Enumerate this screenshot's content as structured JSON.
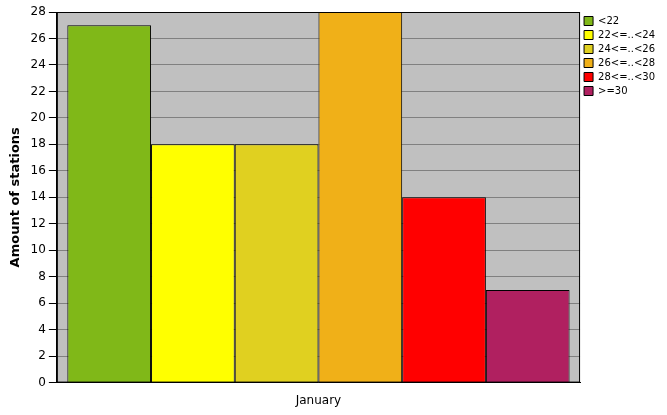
{
  "chart_data": {
    "type": "bar",
    "categories": [
      "January"
    ],
    "series": [
      {
        "name": "<22",
        "color": "#80b818",
        "values": [
          27
        ]
      },
      {
        "name": "22<=..<24",
        "color": "#ffff00",
        "values": [
          18
        ]
      },
      {
        "name": "24<=..<26",
        "color": "#e0d020",
        "values": [
          18
        ]
      },
      {
        "name": "26<=..<28",
        "color": "#f0b018",
        "values": [
          28
        ]
      },
      {
        "name": "28<=..<30",
        "color": "#ff0000",
        "values": [
          14
        ]
      },
      {
        "name": ">=30",
        "color": "#b02060",
        "values": [
          7
        ]
      }
    ],
    "y_label": "Amount of stations",
    "ylim": [
      0,
      28
    ],
    "yticks": [
      0,
      2,
      4,
      6,
      8,
      10,
      12,
      14,
      16,
      18,
      20,
      22,
      24,
      26,
      28
    ],
    "grid": true,
    "legend": "top right"
  }
}
